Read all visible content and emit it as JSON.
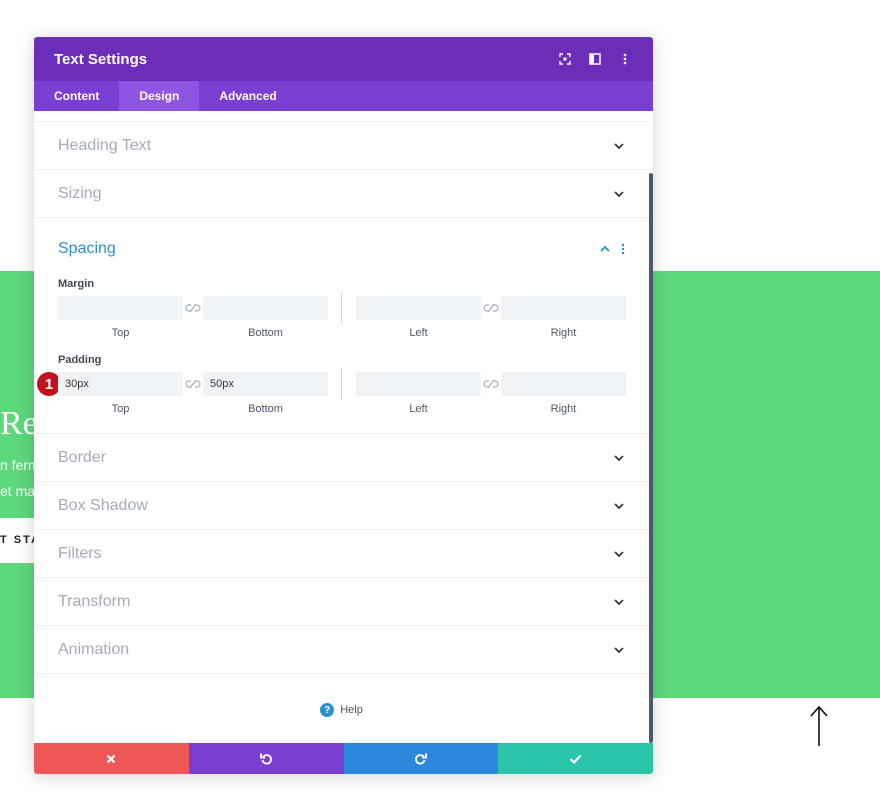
{
  "background": {
    "heading_fragment": "Re",
    "line1_fragment": "n ferm",
    "line2_fragment": "et ma",
    "button_fragment": "T STA"
  },
  "modal": {
    "title": "Text Settings",
    "tabs": [
      {
        "label": "Content"
      },
      {
        "label": "Design"
      },
      {
        "label": "Advanced"
      }
    ],
    "sections_top": [
      {
        "title": "Heading Text"
      },
      {
        "title": "Sizing"
      }
    ],
    "spacing": {
      "title": "Spacing",
      "margin": {
        "label": "Margin",
        "top": {
          "value": "",
          "label": "Top"
        },
        "bottom": {
          "value": "",
          "label": "Bottom"
        },
        "left": {
          "value": "",
          "label": "Left"
        },
        "right": {
          "value": "",
          "label": "Right"
        }
      },
      "padding": {
        "label": "Padding",
        "top": {
          "value": "30px",
          "label": "Top"
        },
        "bottom": {
          "value": "50px",
          "label": "Bottom"
        },
        "left": {
          "value": "",
          "label": "Left"
        },
        "right": {
          "value": "",
          "label": "Right"
        }
      },
      "badge": "1"
    },
    "sections_bottom": [
      {
        "title": "Border"
      },
      {
        "title": "Box Shadow"
      },
      {
        "title": "Filters"
      },
      {
        "title": "Transform"
      },
      {
        "title": "Animation"
      }
    ],
    "help_label": "Help"
  },
  "colors": {
    "header": "#6c2eb9",
    "tabs": "#7b3ed2",
    "active_tab": "#8f54e0",
    "accent_blue": "#2e91c9",
    "cancel": "#ef5656",
    "undo": "#7b3ed2",
    "redo": "#2b87da",
    "save": "#29c4a9",
    "background_green": "#5dd87b"
  },
  "icons": {
    "header": [
      "expand-icon",
      "split-view-icon",
      "more-vertical-icon"
    ],
    "footer": [
      "close-icon",
      "undo-icon",
      "redo-icon",
      "checkmark-icon"
    ]
  }
}
